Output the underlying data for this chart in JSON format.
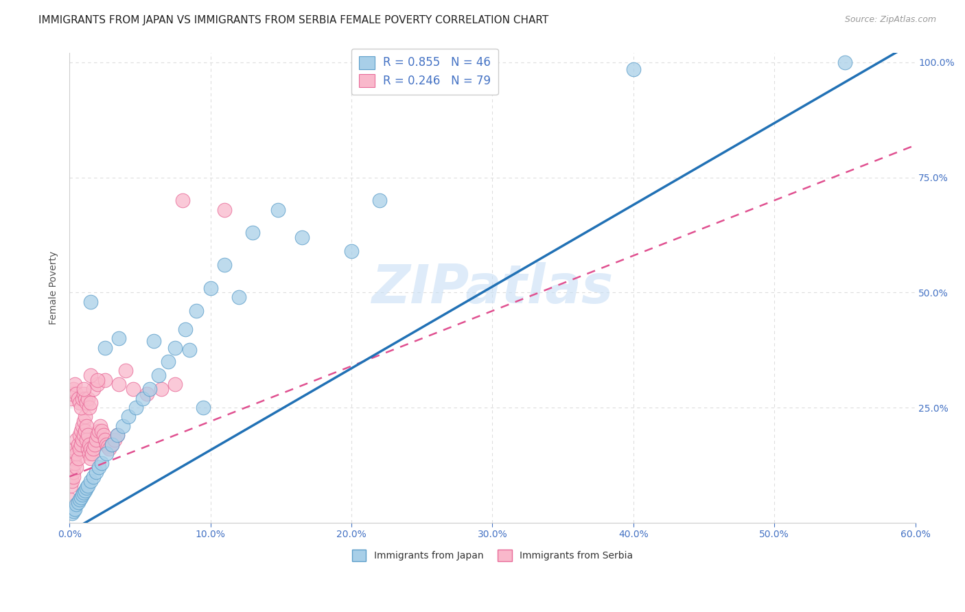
{
  "title": "IMMIGRANTS FROM JAPAN VS IMMIGRANTS FROM SERBIA FEMALE POVERTY CORRELATION CHART",
  "source": "Source: ZipAtlas.com",
  "ylabel_label": "Female Poverty",
  "legend1_label": "R = 0.855   N = 46",
  "legend2_label": "R = 0.246   N = 79",
  "legend_sublabel1": "Immigrants from Japan",
  "legend_sublabel2": "Immigrants from Serbia",
  "japan_color": "#a8cfe8",
  "serbia_color": "#f9b8cb",
  "japan_edge": "#5b9dc9",
  "serbia_edge": "#e86a98",
  "watermark": "ZIPatlas",
  "bg_color": "#ffffff",
  "grid_color": "#dddddd",
  "axis_color": "#4472c4",
  "japan_x": [
    0.002,
    0.003,
    0.004,
    0.005,
    0.006,
    0.007,
    0.008,
    0.009,
    0.01,
    0.011,
    0.012,
    0.013,
    0.015,
    0.017,
    0.019,
    0.021,
    0.023,
    0.026,
    0.03,
    0.034,
    0.038,
    0.042,
    0.047,
    0.052,
    0.057,
    0.063,
    0.07,
    0.075,
    0.082,
    0.09,
    0.1,
    0.11,
    0.13,
    0.148,
    0.2,
    0.22,
    0.4,
    0.55,
    0.015,
    0.025,
    0.035,
    0.06,
    0.085,
    0.095,
    0.12,
    0.165
  ],
  "japan_y": [
    0.02,
    0.025,
    0.03,
    0.04,
    0.045,
    0.05,
    0.055,
    0.06,
    0.065,
    0.07,
    0.075,
    0.08,
    0.09,
    0.1,
    0.11,
    0.12,
    0.13,
    0.15,
    0.17,
    0.19,
    0.21,
    0.23,
    0.25,
    0.27,
    0.29,
    0.32,
    0.35,
    0.38,
    0.42,
    0.46,
    0.51,
    0.56,
    0.63,
    0.68,
    0.59,
    0.7,
    0.985,
    1.0,
    0.48,
    0.38,
    0.4,
    0.395,
    0.375,
    0.25,
    0.49,
    0.62
  ],
  "serbia_x": [
    0.0005,
    0.001,
    0.0015,
    0.002,
    0.002,
    0.002,
    0.003,
    0.003,
    0.003,
    0.004,
    0.004,
    0.005,
    0.005,
    0.005,
    0.006,
    0.006,
    0.007,
    0.007,
    0.008,
    0.008,
    0.009,
    0.009,
    0.01,
    0.01,
    0.011,
    0.011,
    0.012,
    0.012,
    0.013,
    0.013,
    0.014,
    0.014,
    0.015,
    0.015,
    0.016,
    0.017,
    0.018,
    0.019,
    0.02,
    0.021,
    0.022,
    0.023,
    0.024,
    0.025,
    0.026,
    0.027,
    0.028,
    0.03,
    0.032,
    0.034,
    0.001,
    0.002,
    0.003,
    0.004,
    0.005,
    0.006,
    0.007,
    0.008,
    0.009,
    0.01,
    0.011,
    0.012,
    0.013,
    0.014,
    0.015,
    0.017,
    0.02,
    0.025,
    0.035,
    0.045,
    0.055,
    0.065,
    0.075,
    0.01,
    0.015,
    0.02,
    0.04,
    0.08,
    0.11
  ],
  "serbia_y": [
    0.05,
    0.08,
    0.1,
    0.12,
    0.09,
    0.15,
    0.11,
    0.14,
    0.1,
    0.13,
    0.16,
    0.12,
    0.15,
    0.18,
    0.14,
    0.17,
    0.16,
    0.19,
    0.17,
    0.2,
    0.18,
    0.21,
    0.19,
    0.22,
    0.2,
    0.23,
    0.21,
    0.18,
    0.19,
    0.16,
    0.17,
    0.15,
    0.16,
    0.14,
    0.15,
    0.16,
    0.17,
    0.18,
    0.19,
    0.2,
    0.21,
    0.2,
    0.19,
    0.18,
    0.17,
    0.165,
    0.16,
    0.17,
    0.18,
    0.19,
    0.27,
    0.28,
    0.29,
    0.3,
    0.28,
    0.27,
    0.26,
    0.25,
    0.27,
    0.28,
    0.27,
    0.26,
    0.27,
    0.25,
    0.26,
    0.29,
    0.3,
    0.31,
    0.3,
    0.29,
    0.28,
    0.29,
    0.3,
    0.29,
    0.32,
    0.31,
    0.33,
    0.7,
    0.68
  ],
  "xlim": [
    0.0,
    0.6
  ],
  "ylim": [
    0.0,
    1.02
  ],
  "xtick_vals": [
    0.0,
    0.1,
    0.2,
    0.3,
    0.4,
    0.5,
    0.6
  ],
  "xtick_labels": [
    "0.0%",
    "10.0%",
    "20.0%",
    "30.0%",
    "40.0%",
    "50.0%",
    "60.0%"
  ],
  "ytick_vals": [
    0.0,
    0.25,
    0.5,
    0.75,
    1.0
  ],
  "ytick_labels": [
    "",
    "25.0%",
    "50.0%",
    "75.0%",
    "100.0%"
  ],
  "japan_line_x0": 0.0,
  "japan_line_y0": -0.02,
  "japan_line_x1": 0.58,
  "japan_line_y1": 1.01,
  "serbia_line_x0": 0.0,
  "serbia_line_y0": 0.1,
  "serbia_line_x1": 0.6,
  "serbia_line_y1": 0.82
}
